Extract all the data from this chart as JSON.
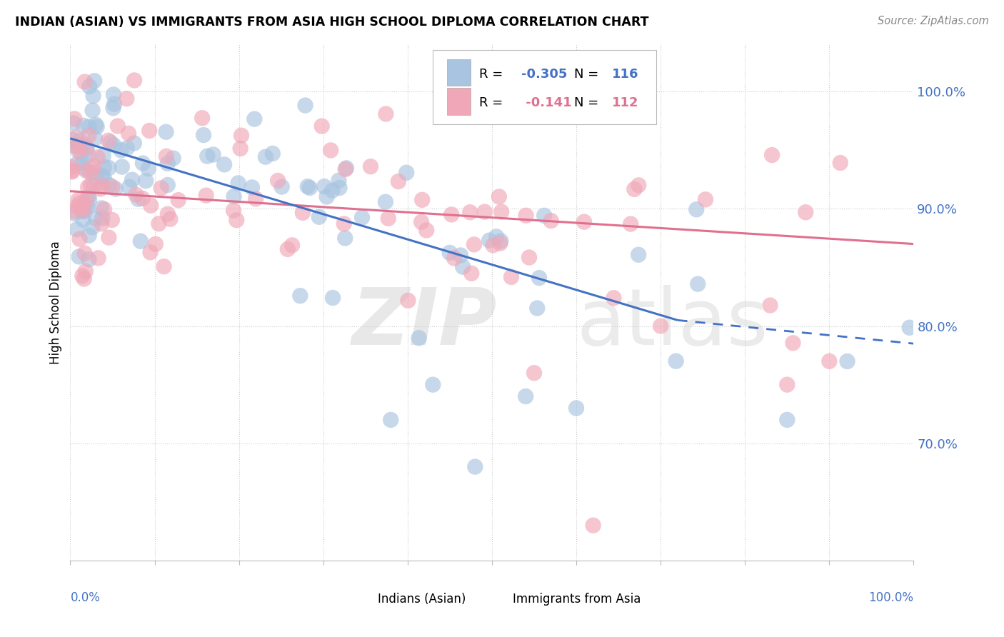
{
  "title": "INDIAN (ASIAN) VS IMMIGRANTS FROM ASIA HIGH SCHOOL DIPLOMA CORRELATION CHART",
  "source": "Source: ZipAtlas.com",
  "ylabel": "High School Diploma",
  "x_range": [
    0.0,
    100.0
  ],
  "y_range": [
    60.0,
    104.0
  ],
  "right_yticks": [
    70.0,
    80.0,
    90.0,
    100.0
  ],
  "color_blue": "#a8c4e0",
  "color_pink": "#f0a8b8",
  "color_blue_line": "#4472c4",
  "color_pink_line": "#e07090",
  "blue_line_start_y": 96.0,
  "blue_line_end_y": 80.5,
  "blue_line_solid_end_x": 72.0,
  "blue_line_dash_end_x": 100.0,
  "blue_line_dash_end_y": 78.5,
  "pink_line_start_y": 91.5,
  "pink_line_end_y": 87.0
}
